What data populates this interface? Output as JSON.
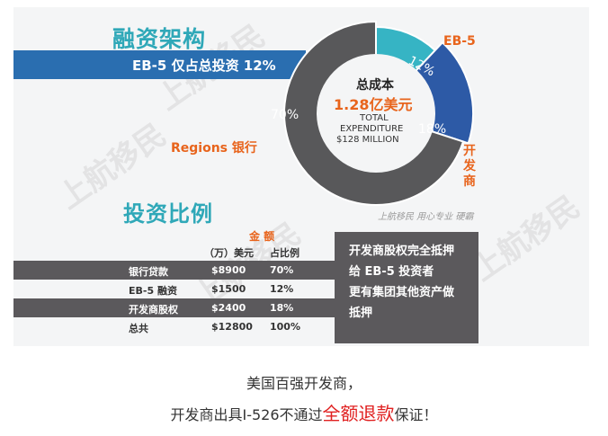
{
  "watermark": "上航移民",
  "headings": {
    "structure": "融资架构",
    "eb5_share": "EB-5 仅占总投资 12%",
    "ratio": "投资比例"
  },
  "donut": {
    "center_line1": "总成本",
    "center_line2": "1.28亿美元",
    "center_line3": "TOTAL",
    "center_line4": "EXPENDITURE",
    "center_line5": "$128 MILLION",
    "segments": [
      {
        "label": "Regions 银行",
        "percent_label": "70%",
        "share": 70,
        "color": "#58585a"
      },
      {
        "label": "EB-5",
        "percent_label": "12%",
        "share": 12,
        "color": "#36b4c4"
      },
      {
        "label": "开发商",
        "percent_label": "18%",
        "share": 18,
        "color": "#2d5aa6"
      }
    ]
  },
  "slogan": "上航移民 用心专业 硬霸",
  "table": {
    "amount_group": "金 额",
    "col_unit": "（万）美元",
    "col_pct": "占比例",
    "rows": [
      {
        "name": "银行贷款",
        "amount": "$8900",
        "pct": "70%"
      },
      {
        "name": "EB-5 融资",
        "amount": "$1500",
        "pct": "12%"
      },
      {
        "name": "开发商股权",
        "amount": "$2400",
        "pct": "18%"
      },
      {
        "name": "总共",
        "amount": "$12800",
        "pct": "100%"
      }
    ]
  },
  "note": [
    "开发商股权完全抵押",
    "给 EB-5 投资者",
    "更有集团其他资产做",
    "抵押"
  ],
  "caption": {
    "line1": "美国百强开发商，",
    "line2_prefix": "开发商出具I-526不通过",
    "line2_highlight": "全额退款",
    "line2_suffix": "保证！"
  }
}
